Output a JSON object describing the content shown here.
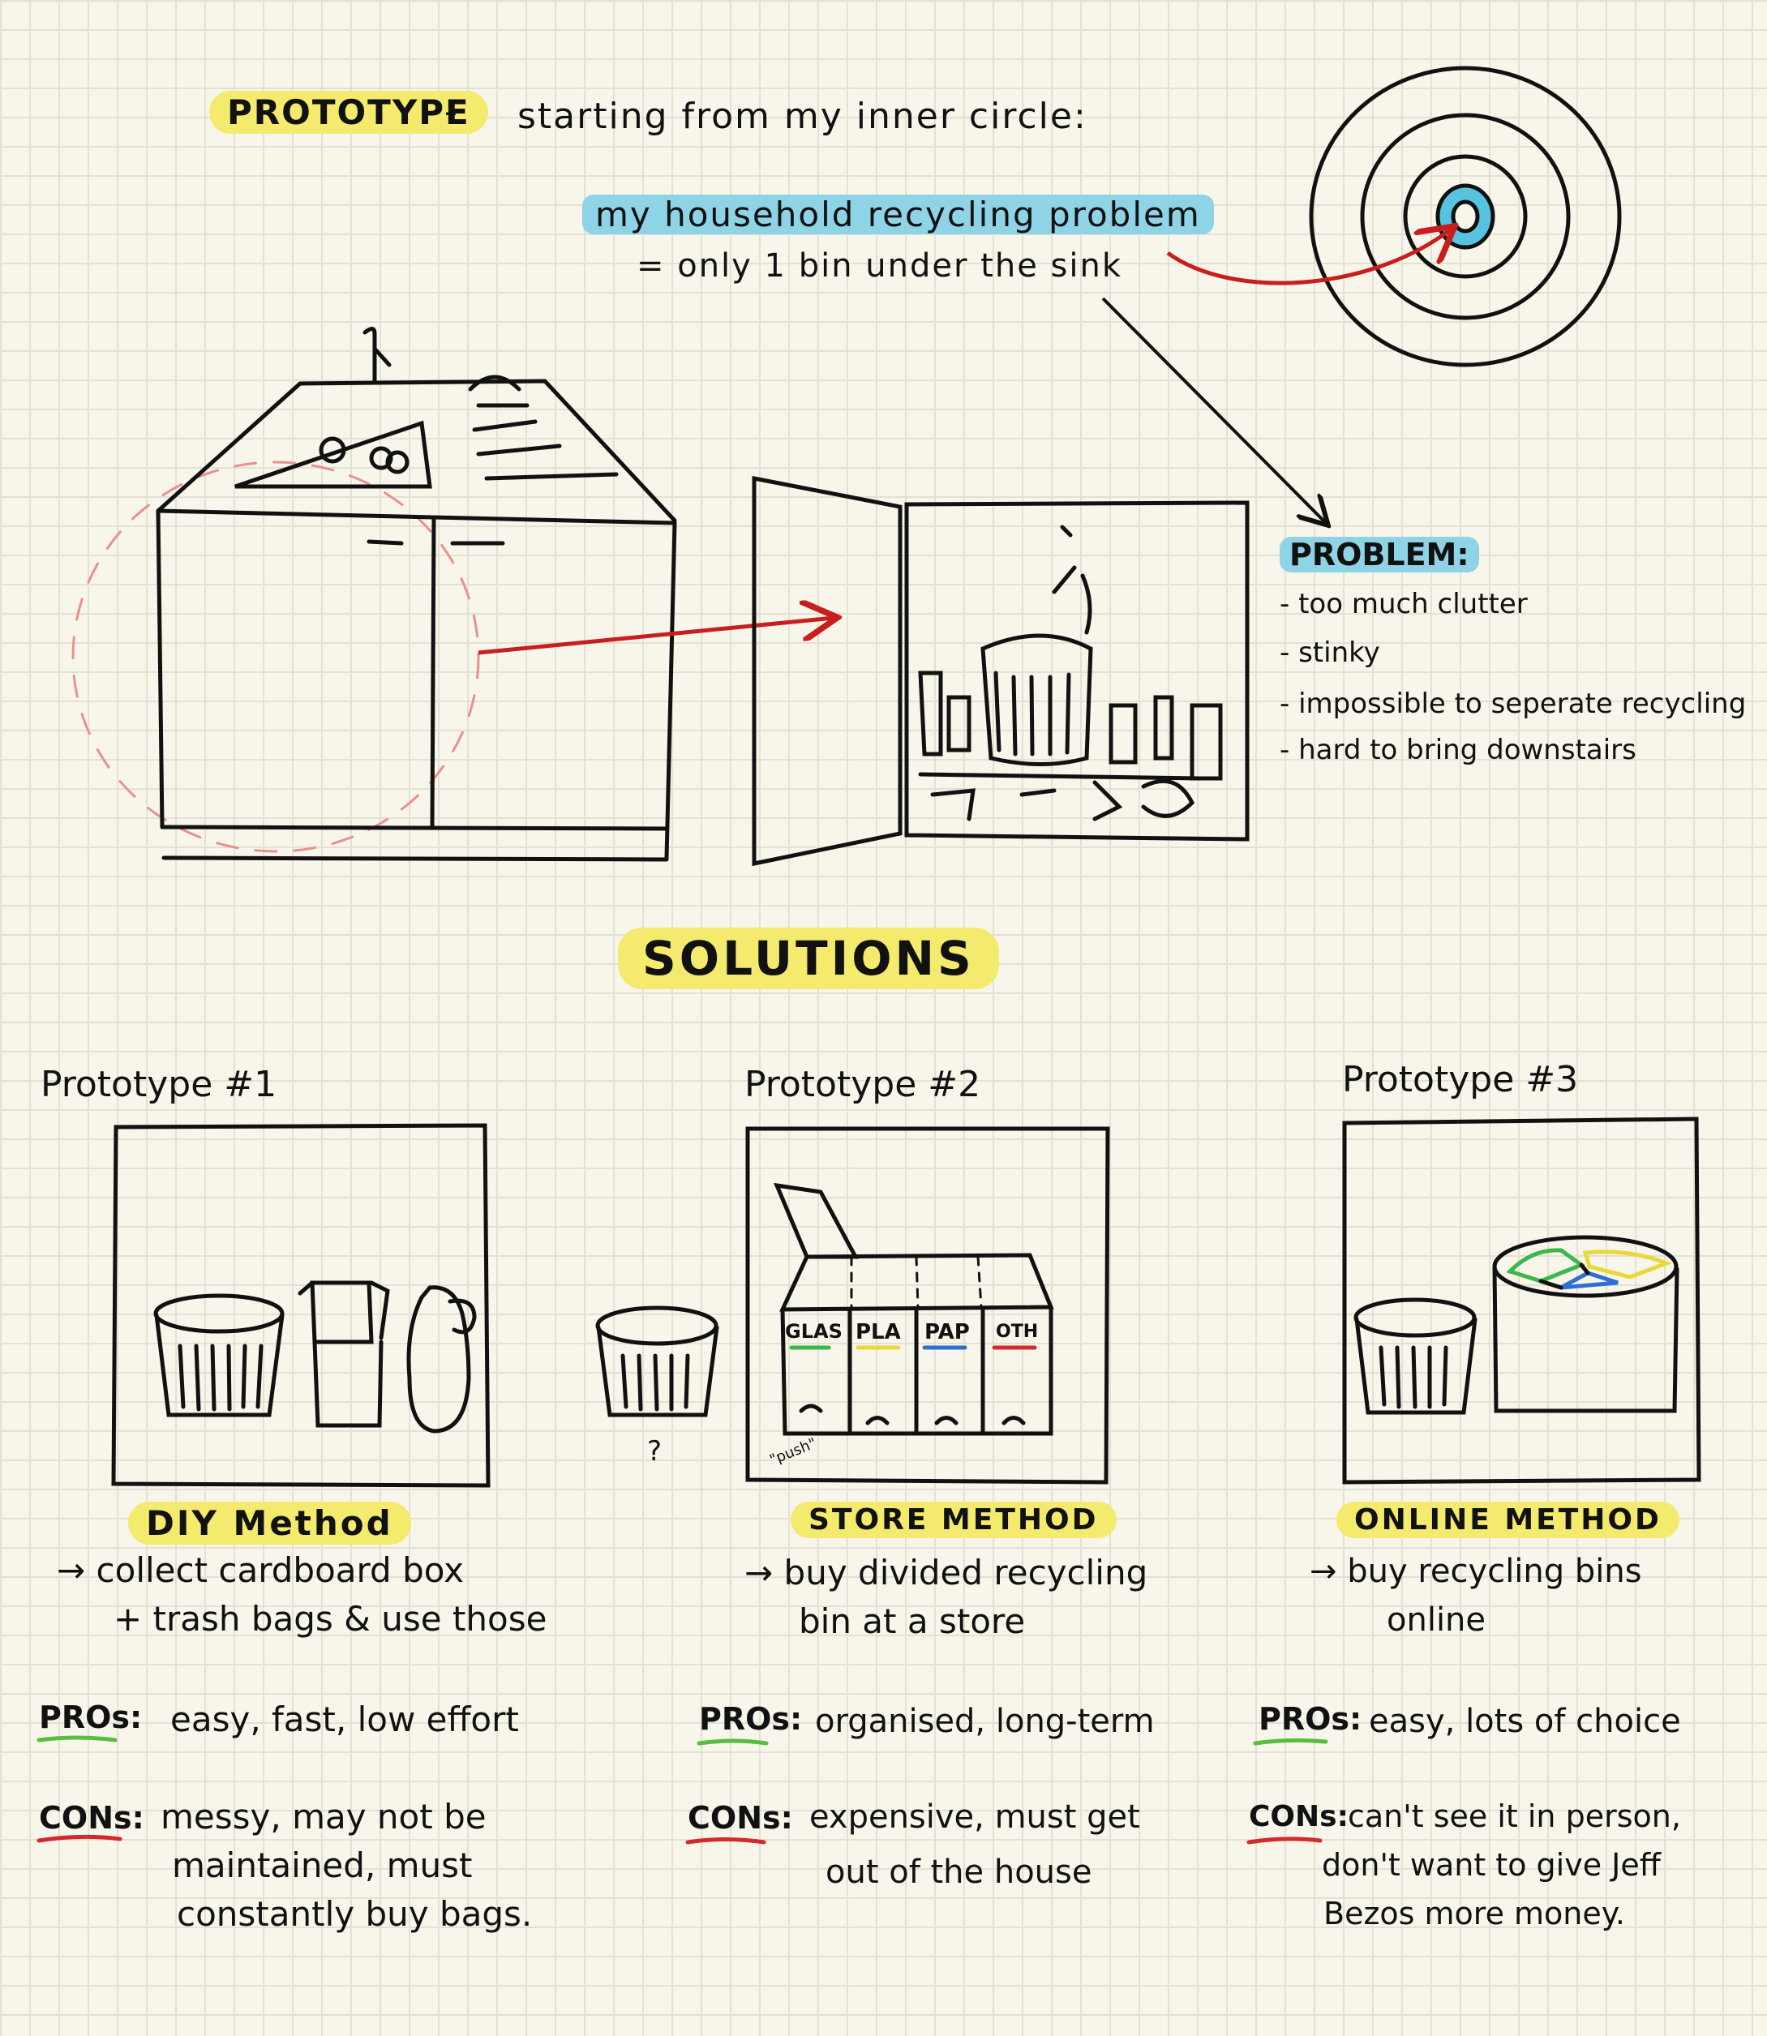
{
  "header": {
    "prototype_label": "PROTOTYPE",
    "dash": "-",
    "intro": "starting from my inner circle:",
    "problem_title": "my household recycling problem",
    "problem_sub": "= only 1 bin under the sink"
  },
  "problem": {
    "label": "PROBLEM:",
    "items": [
      "- too much clutter",
      "- stinky",
      "- impossible to seperate recycling",
      "- hard to bring downstairs"
    ]
  },
  "solutions_title": "SOLUTIONS",
  "prototypes": [
    {
      "title": "Prototype #1",
      "method": "DIY Method",
      "desc_line1": "→ collect cardboard box",
      "desc_line2": "+ trash bags & use those",
      "pros_label": "PROs:",
      "pros": "easy, fast, low effort",
      "cons_label": "CONs:",
      "cons_line1": "messy, may not be",
      "cons_line2": "maintained, must",
      "cons_line3": "constantly buy bags."
    },
    {
      "title": "Prototype #2",
      "method": "STORE METHOD",
      "desc_line1": "→ buy divided recycling",
      "desc_line2": "bin at a store",
      "pros_label": "PROs:",
      "pros": "organised, long-term",
      "cons_label": "CONs:",
      "cons_line1": "expensive, must get",
      "cons_line2": "out of the house",
      "bin_labels": [
        "GLAS",
        "PLA",
        "PAP",
        "OTH"
      ],
      "push_note": "\"push\"",
      "question_mark": "?"
    },
    {
      "title": "Prototype #3",
      "method": "ONLINE METHOD",
      "desc_line1": "→ buy recycling bins",
      "desc_line2": "online",
      "pros_label": "PROs:",
      "pros": "easy, lots of choice",
      "cons_label": "CONs:",
      "cons_line1": "can't see it in person,",
      "cons_line2": "don't want to give Jeff",
      "cons_line3": "Bezos more money."
    }
  ],
  "colors": {
    "highlight_yellow": "#f3ea6e",
    "highlight_blue": "#8fd3e6",
    "arrow_red": "#c81e1e",
    "pros_green": "#5bbd3e",
    "cons_red": "#d42a2a",
    "glass_green": "#3cb84a",
    "plastic_yellow": "#e8d93a",
    "paper_blue": "#2f6fd0",
    "other_red": "#d42a2a"
  },
  "icons": [
    "target-icon",
    "sink-cabinet-icon",
    "trash-bin-icon",
    "cardboard-box-icon",
    "trash-bag-icon",
    "divided-bin-icon",
    "round-divided-bin-icon"
  ]
}
